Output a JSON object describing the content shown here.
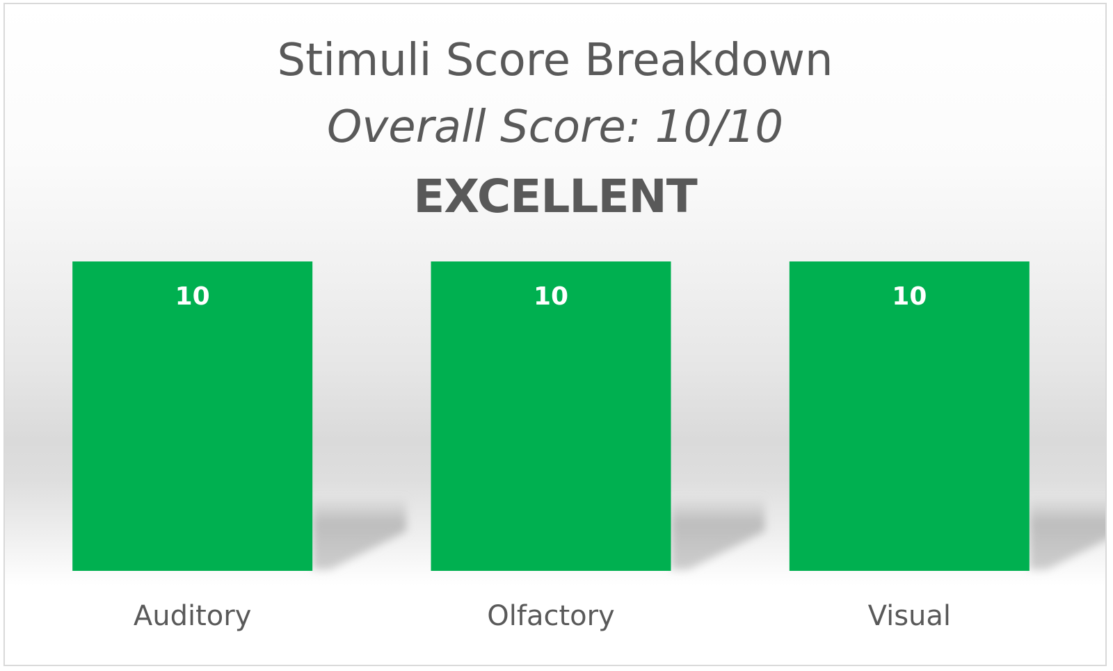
{
  "chart_data": {
    "type": "bar",
    "title": "Stimuli Score Breakdown",
    "subtitle": "Overall Score: 10/10",
    "rating": "EXCELLENT",
    "categories": [
      "Auditory",
      "Olfactory",
      "Visual"
    ],
    "values": [
      10,
      10,
      10
    ],
    "ylim": [
      0,
      10
    ],
    "grid": false,
    "legend": "none",
    "data_labels": true
  },
  "colors": {
    "bar": "#00b050",
    "bar_label": "#ffffff",
    "text": "#595959",
    "shadow": "#b0b0b0"
  }
}
